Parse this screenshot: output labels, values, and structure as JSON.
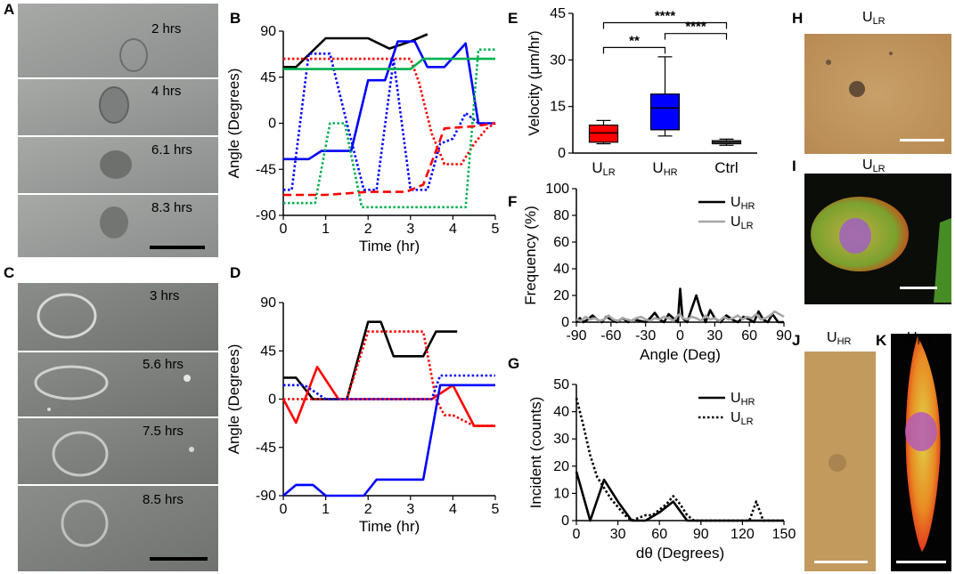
{
  "panel_letters": {
    "A": "A",
    "B": "B",
    "C": "C",
    "D": "D",
    "E": "E",
    "F": "F",
    "G": "G",
    "H": "H",
    "I": "I",
    "J": "J",
    "K": "K"
  },
  "micrographs": {
    "A": {
      "frames": [
        "2 hrs",
        "4 hrs",
        "6.1 hrs",
        "8.3 hrs"
      ]
    },
    "C": {
      "frames": [
        "3 hrs",
        "5.6 hrs",
        "7.5 hrs",
        "8.5 hrs"
      ]
    },
    "H": {
      "title_base": "U",
      "title_sub": "LR"
    },
    "I": {
      "title_base": "U",
      "title_sub": "LR"
    },
    "J": {
      "title_base": "U",
      "title_sub": "HR"
    },
    "K": {
      "title_base": "U",
      "title_sub": "HR"
    }
  },
  "colors": {
    "black": "#000000",
    "red": "#ff0000",
    "blue": "#0000ff",
    "green": "#00b050",
    "gray": "#a6a6a6"
  },
  "chart_data": [
    {
      "id": "B",
      "type": "line",
      "xlabel": "Time (hr)",
      "ylabel": "Angle (Degrees)",
      "xlim": [
        0,
        5
      ],
      "ylim": [
        -90,
        90
      ],
      "xticks": [
        0,
        1,
        2,
        3,
        4,
        5
      ],
      "xticklabels": [
        "0",
        "1",
        "2",
        "3",
        "4",
        "5"
      ],
      "yticks": [
        -90,
        -45,
        0,
        45,
        90
      ],
      "yticklabels": [
        "-90",
        "-45",
        "0",
        "45",
        "90"
      ],
      "series": [
        {
          "name": "black solid",
          "color": "#000000",
          "style": "solid",
          "x": [
            0,
            0.3,
            1.0,
            2.0,
            2.5,
            3.0,
            3.4
          ],
          "y": [
            55,
            55,
            83,
            83,
            73,
            80,
            87
          ]
        },
        {
          "name": "red dotted",
          "color": "#ff0000",
          "style": "dotted",
          "x": [
            0,
            3.0,
            3.2,
            3.5,
            3.8,
            4.2,
            4.5,
            4.8,
            5.0
          ],
          "y": [
            63,
            63,
            40,
            -10,
            -40,
            -40,
            -20,
            -5,
            0
          ]
        },
        {
          "name": "blue solid",
          "color": "#0000ff",
          "style": "solid",
          "x": [
            0,
            0.6,
            0.9,
            1.6,
            2.0,
            2.4,
            2.7,
            3.1,
            3.4,
            3.8,
            4.3,
            4.6,
            5.0
          ],
          "y": [
            -35,
            -35,
            -27,
            -27,
            42,
            42,
            80,
            80,
            55,
            55,
            78,
            0,
            0
          ]
        },
        {
          "name": "blue dotted",
          "color": "#0000ff",
          "style": "dotted",
          "x": [
            0,
            0.2,
            0.6,
            1.1,
            1.5,
            1.9,
            2.2,
            2.6,
            3.0,
            3.4,
            3.7,
            4.0,
            4.3,
            4.6
          ],
          "y": [
            -65,
            -65,
            68,
            68,
            0,
            -65,
            -65,
            62,
            -65,
            -65,
            -20,
            -15,
            10,
            0
          ]
        },
        {
          "name": "green solid",
          "color": "#00b050",
          "style": "solid",
          "x": [
            0,
            3.0,
            3.3,
            3.6,
            5.0
          ],
          "y": [
            53,
            53,
            63,
            63,
            63
          ]
        },
        {
          "name": "green dotted",
          "color": "#00b050",
          "style": "dotted",
          "x": [
            0,
            0.35,
            0.75,
            1.1,
            1.45,
            1.85,
            3.9,
            4.3,
            4.6,
            5.0
          ],
          "y": [
            -78,
            -78,
            -78,
            0,
            0,
            -82,
            -82,
            -82,
            72,
            72
          ]
        },
        {
          "name": "red dashed",
          "color": "#ff0000",
          "style": "dashed",
          "x": [
            0,
            1.0,
            2.0,
            2.9,
            3.3,
            3.8,
            4.5,
            5.0
          ],
          "y": [
            -70,
            -70,
            -67,
            -67,
            -60,
            -5,
            -3,
            0
          ]
        }
      ]
    },
    {
      "id": "D",
      "type": "line",
      "xlabel": "Time (hr)",
      "ylabel": "Angle (Degrees)",
      "xlim": [
        0,
        5
      ],
      "ylim": [
        -90,
        90
      ],
      "xticks": [
        0,
        1,
        2,
        3,
        4,
        5
      ],
      "xticklabels": [
        "0",
        "1",
        "2",
        "3",
        "4",
        "5"
      ],
      "yticks": [
        -90,
        -45,
        0,
        45,
        90
      ],
      "yticklabels": [
        "-90",
        "-45",
        "0",
        "45",
        "90"
      ],
      "series": [
        {
          "name": "black solid",
          "color": "#000000",
          "style": "solid",
          "x": [
            0,
            0.3,
            0.7,
            1.5,
            2.0,
            2.3,
            2.6,
            3.3,
            3.6,
            4.1
          ],
          "y": [
            20,
            20,
            0,
            0,
            72,
            72,
            40,
            40,
            63,
            63
          ]
        },
        {
          "name": "red dotted",
          "color": "#ff0000",
          "style": "dotted",
          "x": [
            0,
            1.5,
            2.0,
            2.6,
            3.3,
            3.6,
            3.8,
            4.0,
            4.5,
            5.0
          ],
          "y": [
            0,
            0,
            63,
            63,
            63,
            0,
            -15,
            -15,
            -25,
            -25
          ]
        },
        {
          "name": "red solid",
          "color": "#ff0000",
          "style": "solid",
          "x": [
            0,
            0.3,
            0.8,
            1.3,
            1.6,
            3.5,
            4.0,
            4.5,
            5.0
          ],
          "y": [
            0,
            -22,
            30,
            0,
            0,
            0,
            13,
            -25,
            -25
          ]
        },
        {
          "name": "blue dotted",
          "color": "#0000ff",
          "style": "dotted",
          "x": [
            0,
            0.5,
            1.0,
            3.5,
            3.7,
            5.0
          ],
          "y": [
            13,
            13,
            0,
            0,
            22,
            22
          ]
        },
        {
          "name": "blue solid",
          "color": "#0000ff",
          "style": "solid",
          "x": [
            0,
            0.3,
            0.7,
            1.0,
            1.9,
            2.2,
            3.3,
            3.7,
            5.0
          ],
          "y": [
            -90,
            -80,
            -80,
            -90,
            -90,
            -75,
            -75,
            13,
            13
          ]
        }
      ]
    },
    {
      "id": "E",
      "type": "box",
      "ylabel": "Velocity (μm/hr)",
      "ylim": [
        0,
        45
      ],
      "yticks": [
        0,
        15,
        30,
        45
      ],
      "yticklabels": [
        "0",
        "15",
        "30",
        "45"
      ],
      "categories": [
        {
          "base": "U",
          "sub": "LR"
        },
        {
          "base": "U",
          "sub": "HR"
        },
        {
          "base": "Ctrl",
          "sub": ""
        }
      ],
      "boxes": [
        {
          "color": "#ff0000",
          "whisker_low": 3,
          "q1": 3.5,
          "median": 6.5,
          "q3": 9,
          "whisker_high": 10.5
        },
        {
          "color": "#0000ff",
          "whisker_low": 5.5,
          "q1": 7.5,
          "median": 14.5,
          "q3": 19,
          "whisker_high": 31
        },
        {
          "color": "#a6a6a6",
          "whisker_low": 2.5,
          "q1": 3,
          "median": 3.5,
          "q3": 4,
          "whisker_high": 4.5
        }
      ],
      "significance": [
        {
          "between": [
            0,
            1
          ],
          "level": 34,
          "label": "**"
        },
        {
          "between": [
            1,
            2
          ],
          "level": 38.5,
          "label": "****"
        },
        {
          "between": [
            0,
            2
          ],
          "level": 42,
          "label": "****"
        }
      ]
    },
    {
      "id": "F",
      "type": "line",
      "xlabel": "Angle (Deg)",
      "ylabel": "Frequency (%)",
      "xlim": [
        -90,
        90
      ],
      "ylim": [
        0,
        100
      ],
      "xticks": [
        -90,
        -60,
        -30,
        0,
        30,
        60,
        90
      ],
      "xticklabels": [
        "-90",
        "-60",
        "-30",
        "0",
        "30",
        "60",
        "90"
      ],
      "yticks": [
        0,
        20,
        40,
        60,
        80,
        100
      ],
      "yticklabels": [
        "0",
        "20",
        "40",
        "60",
        "80",
        "100"
      ],
      "legend": [
        {
          "base": "U",
          "sub": "HR",
          "color": "#000000"
        },
        {
          "base": "U",
          "sub": "LR",
          "color": "#a6a6a6"
        }
      ],
      "series": [
        {
          "name": "UHR",
          "color": "#000000",
          "style": "solid",
          "x": [
            -90,
            -87,
            -84,
            -80,
            -76,
            -72,
            -68,
            -64,
            -60,
            -55,
            -50,
            -45,
            -40,
            -35,
            -30,
            -26,
            -22,
            -18,
            -14,
            -10,
            -6,
            -2,
            0,
            2,
            6,
            10,
            14,
            18,
            22,
            26,
            30,
            35,
            40,
            45,
            50,
            55,
            60,
            64,
            68,
            72,
            76,
            80,
            85,
            90
          ],
          "y": [
            0,
            3,
            0,
            2,
            5,
            2,
            0,
            4,
            2,
            0,
            3,
            0,
            2,
            1,
            0,
            3,
            7,
            2,
            0,
            6,
            3,
            0,
            25,
            3,
            0,
            10,
            20,
            8,
            0,
            9,
            3,
            0,
            5,
            2,
            0,
            4,
            2,
            0,
            8,
            2,
            0,
            6,
            0,
            0
          ]
        },
        {
          "name": "ULR",
          "color": "#a6a6a6",
          "style": "solid",
          "x": [
            -90,
            -86,
            -82,
            -78,
            -74,
            -70,
            -66,
            -62,
            -58,
            -54,
            -50,
            -46,
            -42,
            -38,
            -34,
            -30,
            -26,
            -22,
            -18,
            -14,
            -10,
            -6,
            -2,
            0,
            2,
            6,
            10,
            14,
            18,
            22,
            26,
            30,
            34,
            38,
            42,
            46,
            50,
            54,
            58,
            62,
            66,
            70,
            74,
            78,
            82,
            86,
            90
          ],
          "y": [
            2,
            1,
            4,
            2,
            3,
            1,
            2,
            5,
            2,
            1,
            3,
            2,
            1,
            3,
            4,
            2,
            1,
            3,
            2,
            4,
            3,
            1,
            5,
            6,
            3,
            2,
            4,
            3,
            1,
            5,
            2,
            3,
            1,
            4,
            2,
            3,
            5,
            2,
            4,
            3,
            6,
            2,
            3,
            5,
            8,
            6,
            4
          ]
        }
      ]
    },
    {
      "id": "G",
      "type": "line",
      "xlabel": "dθ (Degrees)",
      "ylabel": "Incident (counts)",
      "xlim": [
        0,
        150
      ],
      "ylim": [
        0,
        50
      ],
      "xticks": [
        0,
        30,
        60,
        90,
        120,
        150
      ],
      "xticklabels": [
        "0",
        "30",
        "60",
        "90",
        "120",
        "150"
      ],
      "yticks": [
        0,
        10,
        20,
        30,
        40,
        50
      ],
      "yticklabels": [
        "0",
        "10",
        "20",
        "30",
        "40",
        "50"
      ],
      "legend": [
        {
          "base": "U",
          "sub": "HR",
          "style": "solid"
        },
        {
          "base": "U",
          "sub": "LR",
          "style": "dotted"
        }
      ],
      "series": [
        {
          "name": "UHR",
          "color": "#000000",
          "style": "solid",
          "x": [
            0,
            10,
            20,
            30,
            40,
            50,
            60,
            70,
            80,
            90,
            100,
            110,
            120,
            130,
            140,
            150
          ],
          "y": [
            18,
            0,
            15,
            7,
            0,
            0,
            3,
            7,
            0,
            0,
            0,
            0,
            0,
            0,
            0,
            0
          ]
        },
        {
          "name": "ULR",
          "color": "#000000",
          "style": "dotted",
          "x": [
            0,
            5,
            10,
            15,
            20,
            25,
            30,
            35,
            40,
            45,
            50,
            55,
            60,
            65,
            70,
            75,
            80,
            85,
            90,
            95,
            100,
            105,
            110,
            115,
            120,
            125,
            130,
            135,
            140,
            145,
            150
          ],
          "y": [
            45,
            35,
            24,
            16,
            12,
            8,
            5,
            2,
            0,
            1,
            2,
            2,
            4,
            6,
            9,
            6,
            2,
            0,
            0,
            0,
            0,
            0,
            0,
            0,
            0,
            0,
            7,
            0,
            0,
            0,
            0
          ]
        }
      ]
    }
  ]
}
